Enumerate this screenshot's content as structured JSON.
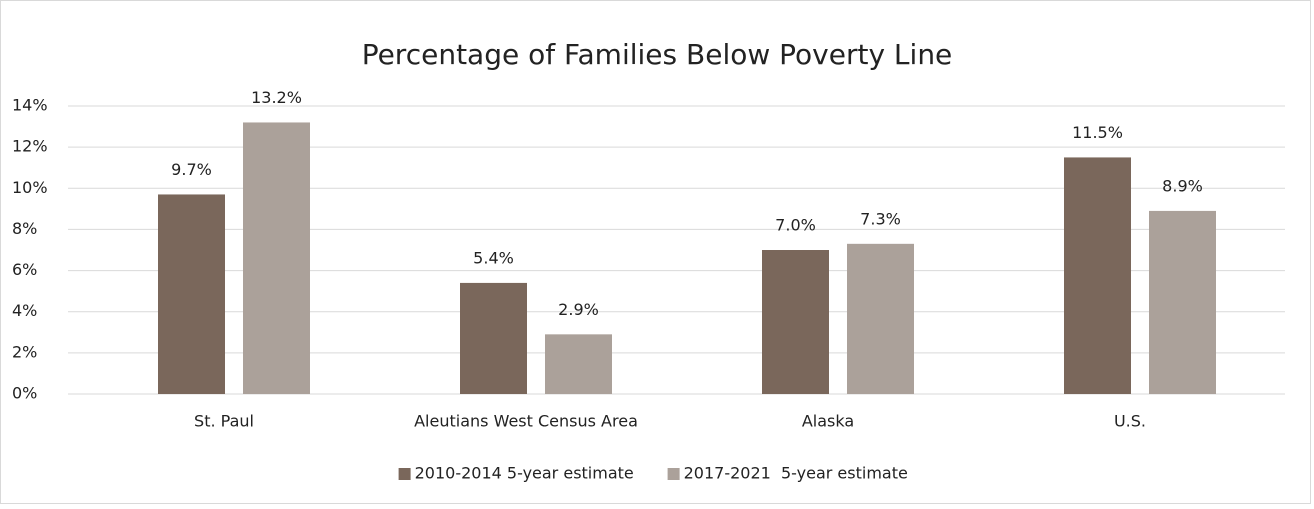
{
  "chart_data": {
    "type": "bar",
    "title": "Percentage of Families Below Poverty Line",
    "categories": [
      "St. Paul",
      "Aleutians West Census Area",
      "Alaska",
      "U.S."
    ],
    "series": [
      {
        "name": "2010-2014 5-year estimate",
        "color": "#7a675b",
        "values": [
          9.7,
          5.4,
          7.0,
          11.5
        ],
        "value_labels": [
          "9.7%",
          "5.4%",
          "7.0%",
          "11.5%"
        ]
      },
      {
        "name": "2017-2021  5-year estimate",
        "color": "#aba19a",
        "values": [
          13.2,
          2.9,
          7.3,
          8.9
        ],
        "value_labels": [
          "13.2%",
          "2.9%",
          "7.3%",
          "8.9%"
        ]
      }
    ],
    "ylim": [
      0,
      14
    ],
    "yticks": [
      {
        "value": 0,
        "label": "0%"
      },
      {
        "value": 2,
        "label": "2%"
      },
      {
        "value": 4,
        "label": "4%"
      },
      {
        "value": 6,
        "label": "6%"
      },
      {
        "value": 8,
        "label": "8%"
      },
      {
        "value": 10,
        "label": "10%"
      },
      {
        "value": 12,
        "label": "12%"
      },
      {
        "value": 14,
        "label": "14%"
      }
    ],
    "grid": true,
    "legend": "bottom"
  }
}
